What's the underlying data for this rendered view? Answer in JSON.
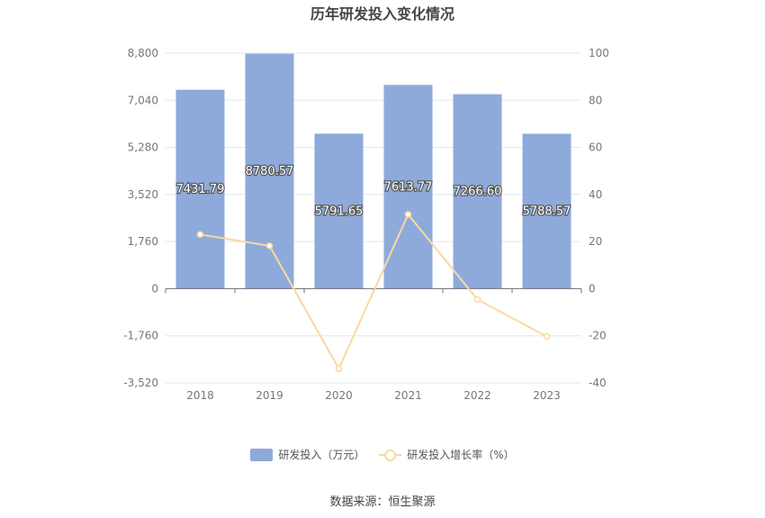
{
  "title": "历年研发投入变化情况",
  "source": "数据来源：恒生聚源",
  "chart_data": {
    "type": "bar",
    "categories": [
      "2018",
      "2019",
      "2020",
      "2021",
      "2022",
      "2023"
    ],
    "series": [
      {
        "name": "研发投入（万元）",
        "type": "bar",
        "axis": "left",
        "values": [
          7431.79,
          8780.57,
          5791.65,
          7613.77,
          7266.6,
          5788.57
        ],
        "labels": [
          "7431.79",
          "8780.57",
          "5791.65",
          "7613.77",
          "7266.60",
          "5788.57"
        ],
        "color": "#8eaadb"
      },
      {
        "name": "研发投入增长率（%）",
        "type": "line",
        "axis": "right",
        "values": [
          23.0,
          18.2,
          -34.0,
          31.5,
          -4.6,
          -20.3
        ],
        "color": "#f9d9a0"
      }
    ],
    "y_left": {
      "ylim": [
        -3520,
        8800
      ],
      "ticks": [
        8800,
        7040,
        5280,
        3520,
        1760,
        0,
        -1760,
        -3520
      ],
      "tick_labels": [
        "8,800",
        "7,040",
        "5,280",
        "3,520",
        "1,760",
        "0",
        "-1,760",
        "-3,520"
      ]
    },
    "y_right": {
      "ylim": [
        -40,
        100
      ],
      "ticks": [
        100,
        80,
        60,
        40,
        20,
        0,
        -20,
        -40
      ],
      "tick_labels": [
        "100",
        "80",
        "60",
        "40",
        "20",
        "0",
        "-20",
        "-40"
      ]
    },
    "grid": true,
    "legend": "bottom"
  }
}
